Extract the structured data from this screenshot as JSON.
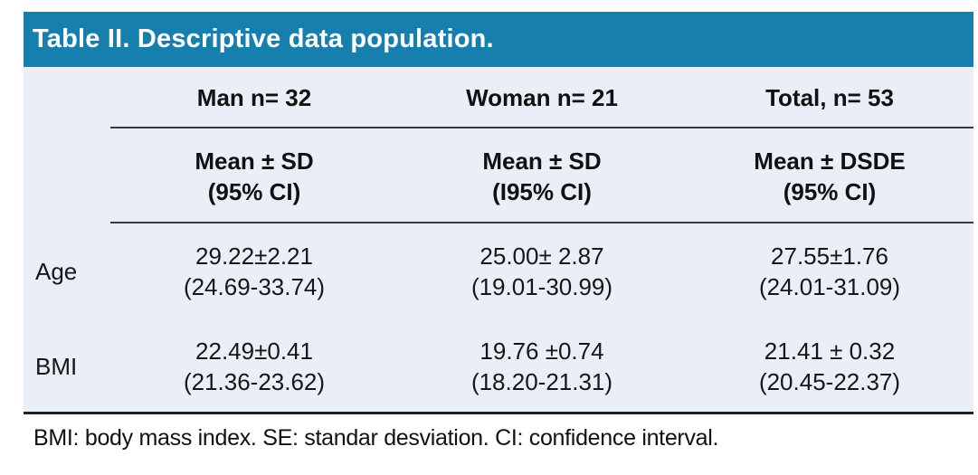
{
  "table": {
    "title": "Table II. Descriptive data population.",
    "columns": [
      "Man n= 32",
      "Woman n= 21",
      "Total, n= 53"
    ],
    "subheaders": [
      {
        "line1": "Mean ± SD",
        "line2": "(95% CI)"
      },
      {
        "line1": "Mean ± SD",
        "line2": "(I95% CI)"
      },
      {
        "line1": "Mean ± DSDE",
        "line2": "(95% CI)"
      }
    ],
    "rows": [
      {
        "label": "Age",
        "cells": [
          {
            "value": "29.22±2.21",
            "ci": "(24.69-33.74)"
          },
          {
            "value": "25.00± 2.87",
            "ci": "(19.01-30.99)"
          },
          {
            "value": "27.55±1.76",
            "ci": "(24.01-31.09)"
          }
        ]
      },
      {
        "label": "BMI",
        "cells": [
          {
            "value": "22.49±0.41",
            "ci": "(21.36-23.62)"
          },
          {
            "value": "19.76 ±0.74",
            "ci": "(18.20-21.31)"
          },
          {
            "value": "21.41 ± 0.32",
            "ci": "(20.45-22.37)"
          }
        ]
      }
    ],
    "footnote": "BMI: body mass index. SE: standar desviation. CI: confidence interval.",
    "colors": {
      "header_bg": "#177fae",
      "body_bg": "#eaeef6",
      "rule": "#3b3b3b",
      "bottom_rule": "#222222"
    }
  }
}
